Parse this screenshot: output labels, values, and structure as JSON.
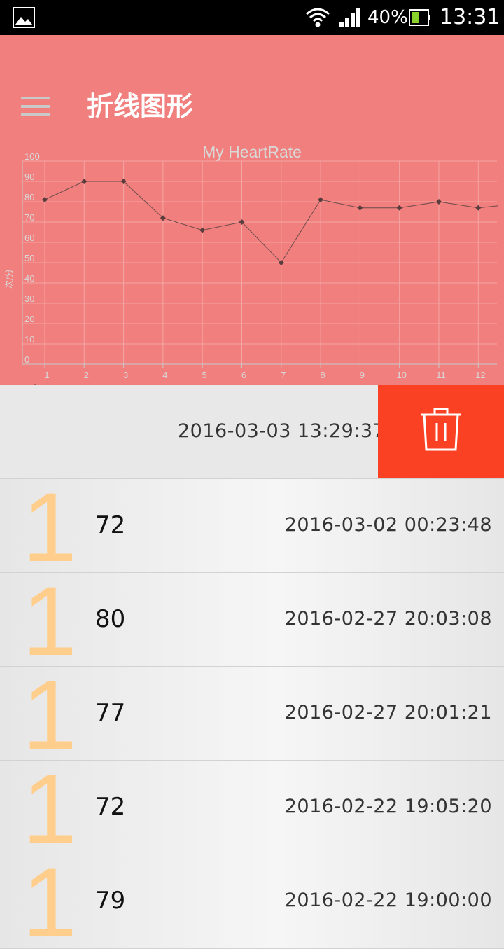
{
  "status_bar": {
    "battery": "40%",
    "time": "13:31"
  },
  "app_bar": {
    "title": "折线图形"
  },
  "chart_data": {
    "type": "line",
    "title": "My HeartRate",
    "ylabel": "次/分",
    "xlabel": "",
    "x": [
      1,
      2,
      3,
      4,
      5,
      6,
      7,
      8,
      9,
      10,
      11,
      12
    ],
    "x_ticks": [
      "1",
      "2",
      "3",
      "4",
      "5",
      "6",
      "7",
      "8",
      "9",
      "10",
      "11",
      "12"
    ],
    "y_ticks": [
      "0",
      "10",
      "20",
      "30",
      "40",
      "50",
      "60",
      "70",
      "80",
      "90",
      "100"
    ],
    "series": [
      {
        "values": [
          81,
          90,
          90,
          72,
          66,
          70,
          50,
          81,
          77,
          77,
          80,
          77
        ]
      }
    ],
    "ylim": [
      0,
      100
    ],
    "grid": true,
    "legend": "bottom-left",
    "colors": {
      "line": "#6b4b4b",
      "grid": "#f5a7a5",
      "text": "#d8d8d8"
    }
  },
  "swiped_row": {
    "time": "2016-03-03 13:29:37",
    "delete_icon": "trash-icon"
  },
  "records": [
    {
      "digit": "1",
      "value": "72",
      "time": "2016-03-02 00:23:48"
    },
    {
      "digit": "1",
      "value": "80",
      "time": "2016-02-27 20:03:08"
    },
    {
      "digit": "1",
      "value": "77",
      "time": "2016-02-27 20:01:21"
    },
    {
      "digit": "1",
      "value": "72",
      "time": "2016-02-22 19:05:20"
    },
    {
      "digit": "1",
      "value": "79",
      "time": "2016-02-22 19:00:00"
    }
  ],
  "colors": {
    "header": "#f07f7d",
    "delete": "#fb4124",
    "digit": "#ffce8c"
  }
}
